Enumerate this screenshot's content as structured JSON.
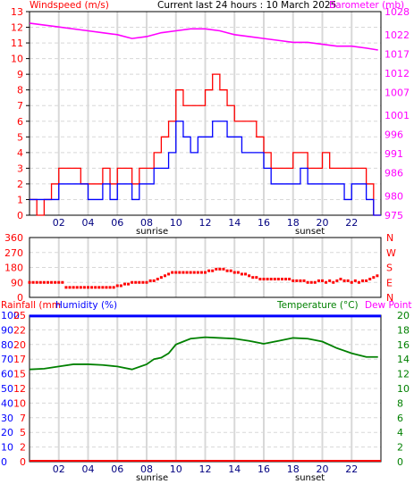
{
  "header": {
    "left": "Windspeed (m/s)",
    "center": "Current last 24 hours : 10 March 2025",
    "right": "Barometer (mb)"
  },
  "panel3_header": {
    "rainfall": "Rainfall (mm",
    "humidity": "Humidity (%)",
    "temperature": "Temperature (°C)",
    "dewpoint": "Dew Point"
  },
  "hour_labels": [
    "02",
    "04",
    "06",
    "08",
    "10",
    "12",
    "14",
    "16",
    "18",
    "20",
    "22"
  ],
  "sunrise_label": "sunrise",
  "sunset_label": "sunset",
  "colors": {
    "wind_gust": "#ff0000",
    "wind_avg": "#0000ff",
    "barometer": "#ff00ff",
    "direction": "#ff0000",
    "temperature": "#008000",
    "humidity": "#0000ff",
    "rainfall": "#ff0000",
    "grid": "#d8d8d8",
    "frame": "#000000"
  },
  "chart_data": [
    {
      "type": "line",
      "title": "Current last 24 hours : 10 March 2025",
      "xlabel": "",
      "x_ticks": [
        "02",
        "04",
        "06",
        "08",
        "10",
        "12",
        "14",
        "16",
        "18",
        "20",
        "22"
      ],
      "xlim": [
        0,
        24
      ],
      "left_axis": {
        "label": "Windspeed (m/s)",
        "ylim": [
          0,
          13
        ],
        "ticks": [
          "0",
          "1",
          "2",
          "3",
          "4",
          "5",
          "6",
          "7",
          "8",
          "9",
          "10",
          "11",
          "12",
          "13"
        ]
      },
      "right_axis": {
        "label": "Barometer (mb)",
        "ticks": [
          "975",
          "980",
          "986",
          "991",
          "996",
          "1001",
          "1007",
          "1012",
          "1017",
          "1022",
          "1028"
        ]
      },
      "series": [
        {
          "name": "Windspeed (m/s)",
          "axis": "left",
          "x": [
            0,
            0.5,
            1,
            1.5,
            2,
            2.5,
            3,
            3.5,
            4,
            4.5,
            5,
            5.5,
            6,
            6.5,
            7,
            7.5,
            8,
            8.5,
            9,
            9.5,
            10,
            10.5,
            11,
            11.5,
            12,
            12.5,
            13,
            13.5,
            14,
            14.5,
            15,
            15.5,
            16,
            16.5,
            17,
            17.5,
            18,
            18.5,
            19,
            19.5,
            20,
            20.5,
            21,
            21.5,
            22,
            22.5,
            23,
            23.5
          ],
          "values": [
            1,
            1,
            1,
            1,
            2,
            2,
            2,
            2,
            1,
            1,
            2,
            1,
            2,
            2,
            1,
            2,
            2,
            3,
            3,
            4,
            6,
            5,
            4,
            5,
            5,
            6,
            6,
            5,
            5,
            4,
            4,
            4,
            3,
            2,
            2,
            2,
            2,
            3,
            2,
            2,
            2,
            2,
            2,
            1,
            2,
            2,
            1,
            0
          ]
        },
        {
          "name": "Windspeed (m/s)",
          "axis": "left",
          "x": [
            0,
            0.5,
            1,
            1.5,
            2,
            2.5,
            3,
            3.5,
            4,
            4.5,
            5,
            5.5,
            6,
            6.5,
            7,
            7.5,
            8,
            8.5,
            9,
            9.5,
            10,
            10.5,
            11,
            11.5,
            12,
            12.5,
            13,
            13.5,
            14,
            14.5,
            15,
            15.5,
            16,
            16.5,
            17,
            17.5,
            18,
            18.5,
            19,
            19.5,
            20,
            20.5,
            21,
            21.5,
            22,
            22.5,
            23,
            23.5
          ],
          "values": [
            1,
            0,
            1,
            2,
            3,
            3,
            3,
            2,
            2,
            2,
            3,
            2,
            3,
            3,
            2,
            3,
            3,
            4,
            5,
            6,
            8,
            7,
            7,
            7,
            8,
            9,
            8,
            7,
            6,
            6,
            6,
            5,
            4,
            3,
            3,
            3,
            4,
            4,
            3,
            3,
            4,
            3,
            3,
            3,
            3,
            3,
            2,
            0
          ]
        },
        {
          "name": "Barometer (mb)",
          "axis": "right",
          "x": [
            0,
            1,
            2,
            3,
            4,
            5,
            6,
            7,
            8,
            9,
            10,
            11,
            12,
            13,
            14,
            15,
            16,
            17,
            18,
            19,
            20,
            21,
            22,
            23,
            23.8
          ],
          "values": [
            1025,
            1024.5,
            1024,
            1023.5,
            1023,
            1022.5,
            1022,
            1021,
            1021.5,
            1022.5,
            1023,
            1023.5,
            1023.5,
            1023,
            1022,
            1021.5,
            1021,
            1020.5,
            1020,
            1020,
            1019.5,
            1019,
            1019,
            1018.5,
            1018
          ]
        }
      ]
    },
    {
      "type": "scatter",
      "title": "",
      "x_ticks": [],
      "xlim": [
        0,
        24
      ],
      "ylim": [
        0,
        360
      ],
      "y_ticks_left": [
        "0",
        "90",
        "180",
        "270",
        "360"
      ],
      "y_ticks_right": [
        "N",
        "E",
        "S",
        "W",
        "N"
      ],
      "series": [
        {
          "name": "",
          "x": [
            0,
            0.25,
            0.5,
            0.75,
            1,
            1.25,
            1.5,
            1.75,
            2,
            2.25,
            2.5,
            2.75,
            3,
            3.25,
            3.5,
            3.75,
            4,
            4.25,
            4.5,
            4.75,
            5,
            5.25,
            5.5,
            5.75,
            6,
            6.25,
            6.5,
            6.75,
            7,
            7.25,
            7.5,
            7.75,
            8,
            8.25,
            8.5,
            8.75,
            9,
            9.25,
            9.5,
            9.75,
            10,
            10.25,
            10.5,
            10.75,
            11,
            11.25,
            11.5,
            11.75,
            12,
            12.25,
            12.5,
            12.75,
            13,
            13.25,
            13.5,
            13.75,
            14,
            14.25,
            14.5,
            14.75,
            15,
            15.25,
            15.5,
            15.75,
            16,
            16.25,
            16.5,
            16.75,
            17,
            17.25,
            17.5,
            17.75,
            18,
            18.25,
            18.5,
            18.75,
            19,
            19.25,
            19.5,
            19.75,
            20,
            20.25,
            20.5,
            20.75,
            21,
            21.25,
            21.5,
            21.75,
            22,
            22.25,
            22.5,
            22.75,
            23,
            23.25,
            23.5,
            23.75
          ],
          "values": [
            90,
            90,
            90,
            90,
            90,
            90,
            90,
            90,
            90,
            90,
            60,
            60,
            60,
            60,
            60,
            60,
            60,
            60,
            60,
            60,
            60,
            60,
            60,
            60,
            70,
            70,
            80,
            80,
            90,
            90,
            90,
            90,
            90,
            100,
            100,
            110,
            120,
            130,
            140,
            150,
            150,
            150,
            150,
            150,
            150,
            150,
            150,
            150,
            150,
            160,
            160,
            170,
            170,
            170,
            160,
            160,
            150,
            150,
            140,
            140,
            130,
            120,
            120,
            110,
            110,
            110,
            110,
            110,
            110,
            110,
            110,
            110,
            100,
            100,
            100,
            100,
            90,
            90,
            90,
            100,
            100,
            90,
            100,
            90,
            100,
            110,
            100,
            100,
            90,
            100,
            90,
            100,
            100,
            110,
            120,
            130
          ]
        }
      ]
    },
    {
      "type": "line",
      "title": "",
      "x_ticks": [
        "02",
        "04",
        "06",
        "08",
        "10",
        "12",
        "14",
        "16",
        "18",
        "20",
        "22"
      ],
      "xlim": [
        0,
        24
      ],
      "left_axis_rain": {
        "label": "Rainfall (mm",
        "ticks": [
          "0",
          "2",
          "5",
          "7",
          "10",
          "12",
          "15",
          "17",
          "20",
          "22",
          "25"
        ]
      },
      "left_axis_humidity": {
        "label": "Humidity (%)",
        "ylim": [
          0,
          100
        ],
        "ticks": [
          "0",
          "10",
          "20",
          "30",
          "40",
          "50",
          "60",
          "70",
          "80",
          "90",
          "100"
        ]
      },
      "right_axis": {
        "label": "Temperature (°C)",
        "ylim": [
          0,
          20
        ],
        "ticks": [
          "0",
          "2",
          "4",
          "6",
          "8",
          "10",
          "12",
          "14",
          "16",
          "18",
          "20"
        ]
      },
      "series": [
        {
          "name": "Temperature (°C)",
          "axis": "right",
          "x": [
            0,
            1,
            2,
            3,
            4,
            5,
            6,
            7,
            8,
            8.5,
            9,
            9.5,
            10,
            10.5,
            11,
            12,
            13,
            14,
            15,
            16,
            17,
            18,
            19,
            20,
            21,
            22,
            23,
            23.8
          ],
          "values": [
            12.6,
            12.7,
            13.0,
            13.3,
            13.3,
            13.2,
            13.0,
            12.6,
            13.3,
            14.0,
            14.2,
            14.8,
            16.0,
            16.4,
            16.8,
            17.0,
            16.9,
            16.8,
            16.5,
            16.1,
            16.5,
            16.9,
            16.8,
            16.4,
            15.5,
            14.8,
            14.3,
            14.3
          ]
        },
        {
          "name": "Humidity (%)",
          "axis": "left",
          "x": [
            0,
            24
          ],
          "values": [
            99.5,
            99.5
          ]
        },
        {
          "name": "Rainfall (mm",
          "axis": "left",
          "x": [
            0,
            24
          ],
          "values": [
            0,
            0
          ]
        }
      ]
    }
  ]
}
